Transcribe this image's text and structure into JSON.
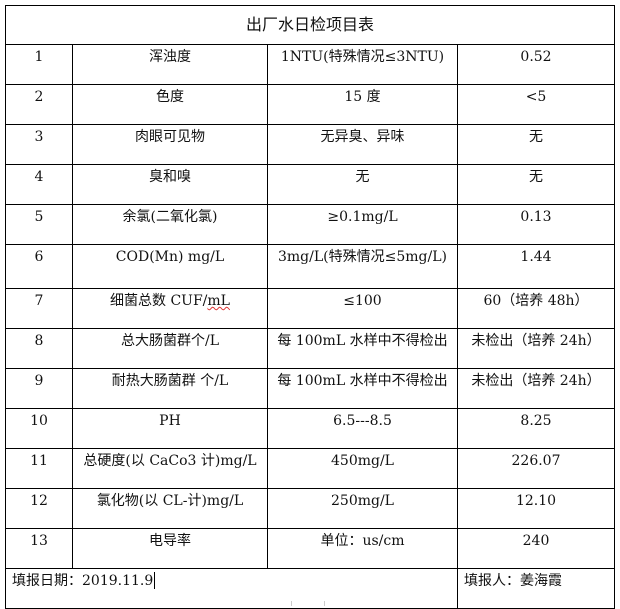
{
  "title": "出厂水日检项目表",
  "rows": [
    {
      "no": "1",
      "item": "浑浊度",
      "standard": "1NTU(特殊情况≤3NTU)",
      "result": "0.52"
    },
    {
      "no": "2",
      "item": "色度",
      "standard": "15 度",
      "result": "<5"
    },
    {
      "no": "3",
      "item": "肉眼可见物",
      "standard": "无异臭、异味",
      "result": "无"
    },
    {
      "no": "4",
      "item": "臭和嗅",
      "standard": "无",
      "result": "无"
    },
    {
      "no": "5",
      "item": "余氯(二氧化氯)",
      "standard": "≥0.1mg/L",
      "result": "0.13"
    },
    {
      "no": "6",
      "item": "COD(Mn)  mg/L",
      "standard": "3mg/L(特殊情况≤5mg/L)",
      "result": "1.44"
    },
    {
      "no": "7",
      "item": "细菌总数 CUF/",
      "item_unit": "mL",
      "standard": "≤100",
      "result": "60（培养 48h）"
    },
    {
      "no": "8",
      "item": "总大肠菌群个/L",
      "standard": "每 100mL 水样中不得检出",
      "result": "未检出（培养 24h）"
    },
    {
      "no": "9",
      "item": "耐热大肠菌群 个/L",
      "standard": "每 100mL 水样中不得检出",
      "result": "未检出（培养 24h）"
    },
    {
      "no": "10",
      "item": "PH",
      "standard": "6.5---8.5",
      "result": "8.25"
    },
    {
      "no": "11",
      "item": "总硬度(以 CaCo3 计)mg/L",
      "standard": "450mg/L",
      "result": "226.07"
    },
    {
      "no": "12",
      "item": "氯化物(以 CL-计)mg/L",
      "standard": "250mg/L",
      "result": "12.10"
    },
    {
      "no": "13",
      "item": "电导率",
      "standard": "单位：us/cm",
      "result": "240"
    }
  ],
  "footer": {
    "date_label": "填报日期：2019.11.9",
    "reporter_label": "填报人：姜海霞"
  }
}
